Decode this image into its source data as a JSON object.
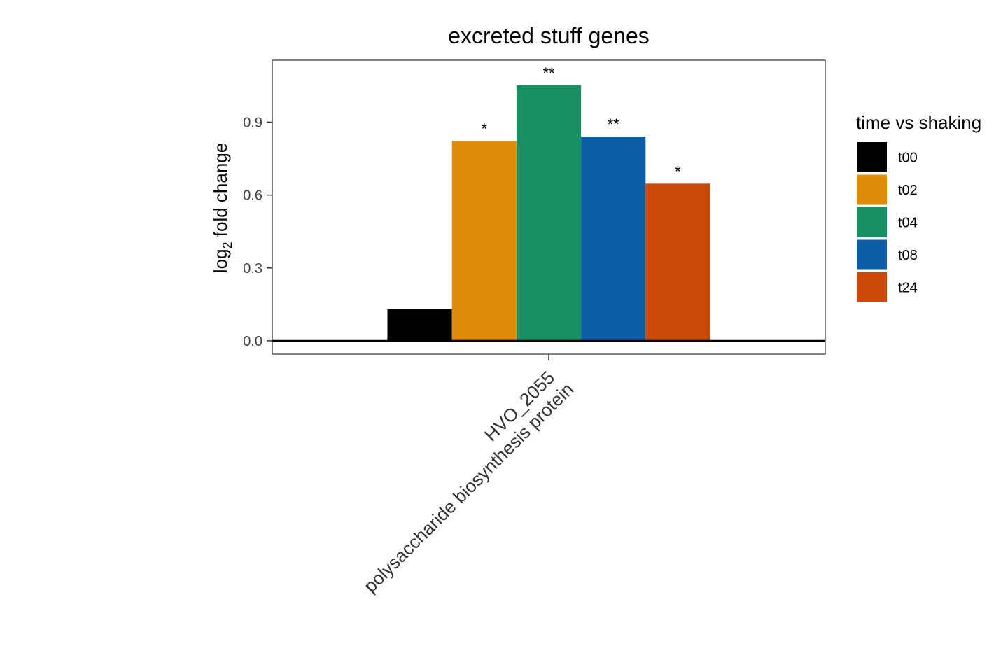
{
  "chart_data": {
    "type": "bar",
    "title": "excreted stuff genes",
    "ylabel_main": "log",
    "ylabel_sub": "2",
    "ylabel_rest": " fold change",
    "xlabel": "",
    "categories": [
      "HVO_2055\npolysaccharide biosynthesis protein"
    ],
    "category_line1": "HVO_2055",
    "category_line2": "polysaccharide biosynthesis protein",
    "ylim": [
      -0.055,
      1.155
    ],
    "yticks": [
      0.0,
      0.3,
      0.6,
      0.9
    ],
    "ytick_labels": [
      "0.0",
      "0.3",
      "0.6",
      "0.9"
    ],
    "legend_title": "time vs shaking",
    "legend_position": "right",
    "grid": false,
    "series": [
      {
        "name": "t00",
        "color": "#000000",
        "values": [
          0.13
        ],
        "significance": ""
      },
      {
        "name": "t02",
        "color": "#DE8C0A",
        "values": [
          0.822
        ],
        "significance": "*"
      },
      {
        "name": "t04",
        "color": "#168F63",
        "values": [
          1.052
        ],
        "significance": "**"
      },
      {
        "name": "t08",
        "color": "#0D5FA5",
        "values": [
          0.841
        ],
        "significance": "**"
      },
      {
        "name": "t24",
        "color": "#C94A06",
        "values": [
          0.647
        ],
        "significance": "*"
      }
    ]
  }
}
